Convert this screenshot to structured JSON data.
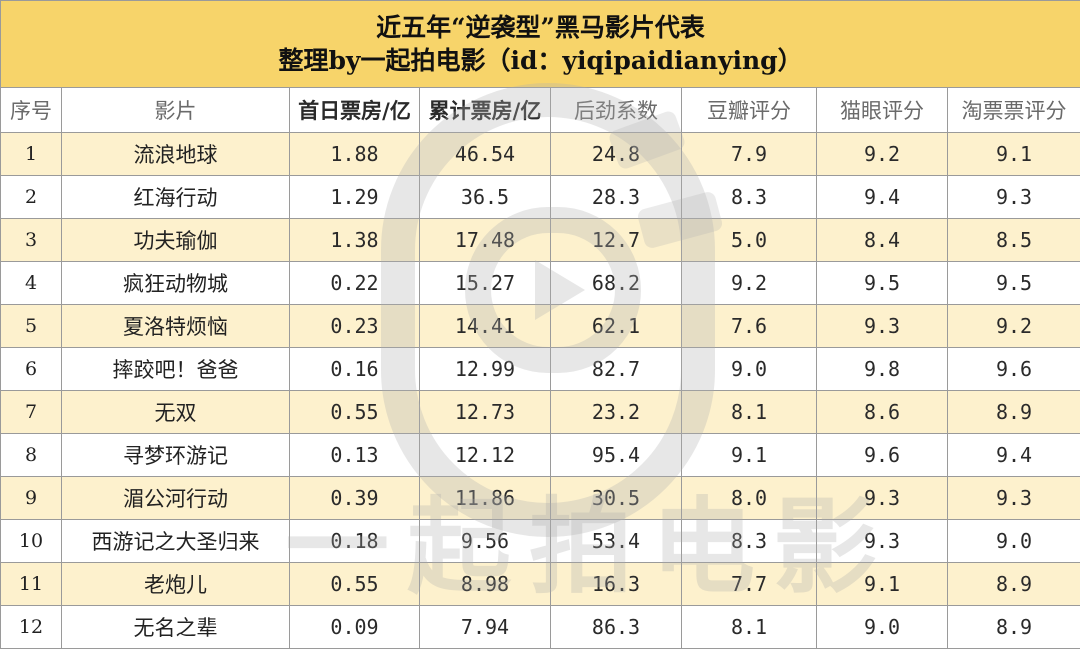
{
  "title": {
    "line1": "近五年“逆袭型”黑马影片代表",
    "line2": "整理by一起拍电影（id：yiqipaidianying）"
  },
  "headers": [
    "序号",
    "影片",
    "首日票房/亿",
    "累计票房/亿",
    "后劲系数",
    "豆瓣评分",
    "猫眼评分",
    "淘票票评分"
  ],
  "rows": [
    [
      "1",
      "流浪地球",
      "1.88",
      "46.54",
      "24.8",
      "7.9",
      "9.2",
      "9.1"
    ],
    [
      "2",
      "红海行动",
      "1.29",
      "36.5",
      "28.3",
      "8.3",
      "9.4",
      "9.3"
    ],
    [
      "3",
      "功夫瑜伽",
      "1.38",
      "17.48",
      "12.7",
      "5.0",
      "8.4",
      "8.5"
    ],
    [
      "4",
      "疯狂动物城",
      "0.22",
      "15.27",
      "68.2",
      "9.2",
      "9.5",
      "9.5"
    ],
    [
      "5",
      "夏洛特烦恼",
      "0.23",
      "14.41",
      "62.1",
      "7.6",
      "9.3",
      "9.2"
    ],
    [
      "6",
      "摔跤吧！爸爸",
      "0.16",
      "12.99",
      "82.7",
      "9.0",
      "9.8",
      "9.6"
    ],
    [
      "7",
      "无双",
      "0.55",
      "12.73",
      "23.2",
      "8.1",
      "8.6",
      "8.9"
    ],
    [
      "8",
      "寻梦环游记",
      "0.13",
      "12.12",
      "95.4",
      "9.1",
      "9.6",
      "9.4"
    ],
    [
      "9",
      "湄公河行动",
      "0.39",
      "11.86",
      "30.5",
      "8.0",
      "9.3",
      "9.3"
    ],
    [
      "10",
      "西游记之大圣归来",
      "0.18",
      "9.56",
      "53.4",
      "8.3",
      "9.3",
      "9.0"
    ],
    [
      "11",
      "老炮儿",
      "0.55",
      "8.98",
      "16.3",
      "7.7",
      "9.1",
      "8.9"
    ],
    [
      "12",
      "无名之辈",
      "0.09",
      "7.94",
      "86.3",
      "8.1",
      "9.0",
      "8.9"
    ]
  ],
  "watermark": {
    "text": "一起拍电影",
    "icon": "camera-play-logo-icon"
  },
  "colors": {
    "title_bg": "#f7d46a",
    "stripe_bg": "#fdf1cd",
    "border": "#9a9a9a"
  }
}
